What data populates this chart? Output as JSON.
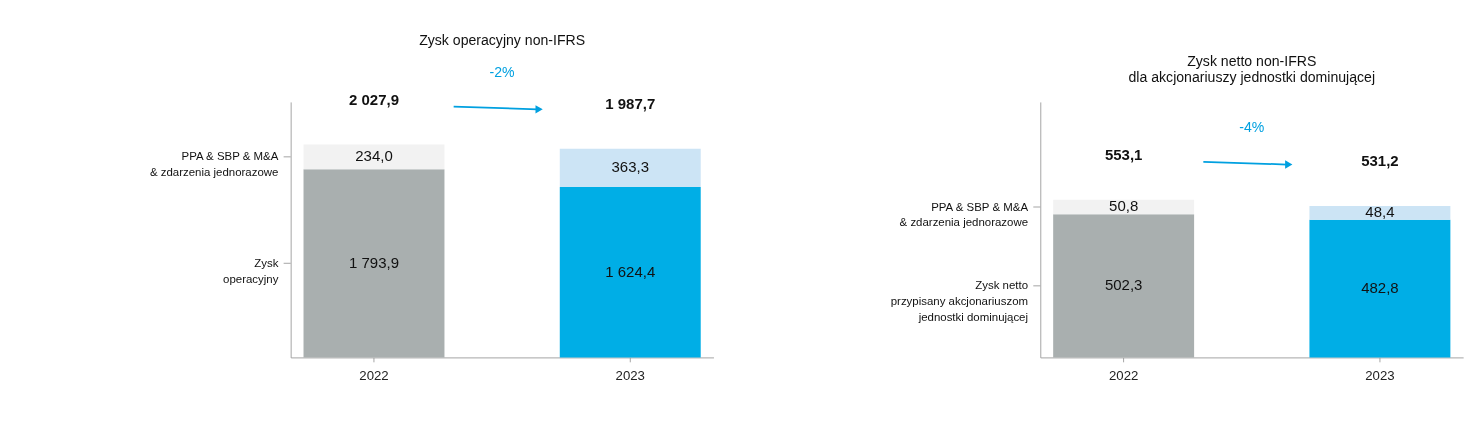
{
  "chart_data": [
    {
      "type": "bar",
      "stacked": true,
      "title": "Zysk  operacyjny non-IFRS",
      "categories": [
        "2022",
        "2023"
      ],
      "tick_labels": "x",
      "grid": false,
      "series": [
        {
          "name": "Zysk\noperacyjny",
          "colors": [
            "#a9afaf",
            "#00aee6"
          ],
          "values": [
            1793.9,
            1624.4
          ],
          "value_labels": [
            "1 793,9",
            "1 624,4"
          ]
        },
        {
          "name": "PPA & SBP & M&A\n& zdarzenia jednorazowe",
          "colors": [
            "#f2f2f2",
            "#cce4f5"
          ],
          "values": [
            234.0,
            363.3
          ],
          "value_labels": [
            "234,0",
            "363,3"
          ]
        }
      ],
      "totals": [
        "2 027,9",
        "1 987,7"
      ],
      "annotations": [
        "-2%"
      ]
    },
    {
      "type": "bar",
      "stacked": true,
      "title": "Zysk netto non-IFRS\ndla akcjonariuszy jednostki dominującej",
      "categories": [
        "2022",
        "2023"
      ],
      "tick_labels": "x",
      "grid": false,
      "series": [
        {
          "name": "Zysk netto\nprzypisany akcjonariuszom\njednostki dominującej",
          "colors": [
            "#a9afaf",
            "#00aee6"
          ],
          "values": [
            502.3,
            482.8
          ],
          "value_labels": [
            "502,3",
            "482,8"
          ]
        },
        {
          "name": "PPA & SBP & M&A\n& zdarzenia jednorazowe",
          "colors": [
            "#f2f2f2",
            "#cce4f5"
          ],
          "values": [
            50.8,
            48.4
          ],
          "value_labels": [
            "50,8",
            "48,4"
          ]
        }
      ],
      "totals": [
        "553,1",
        "531,2"
      ],
      "annotations": [
        "-4%"
      ]
    }
  ]
}
